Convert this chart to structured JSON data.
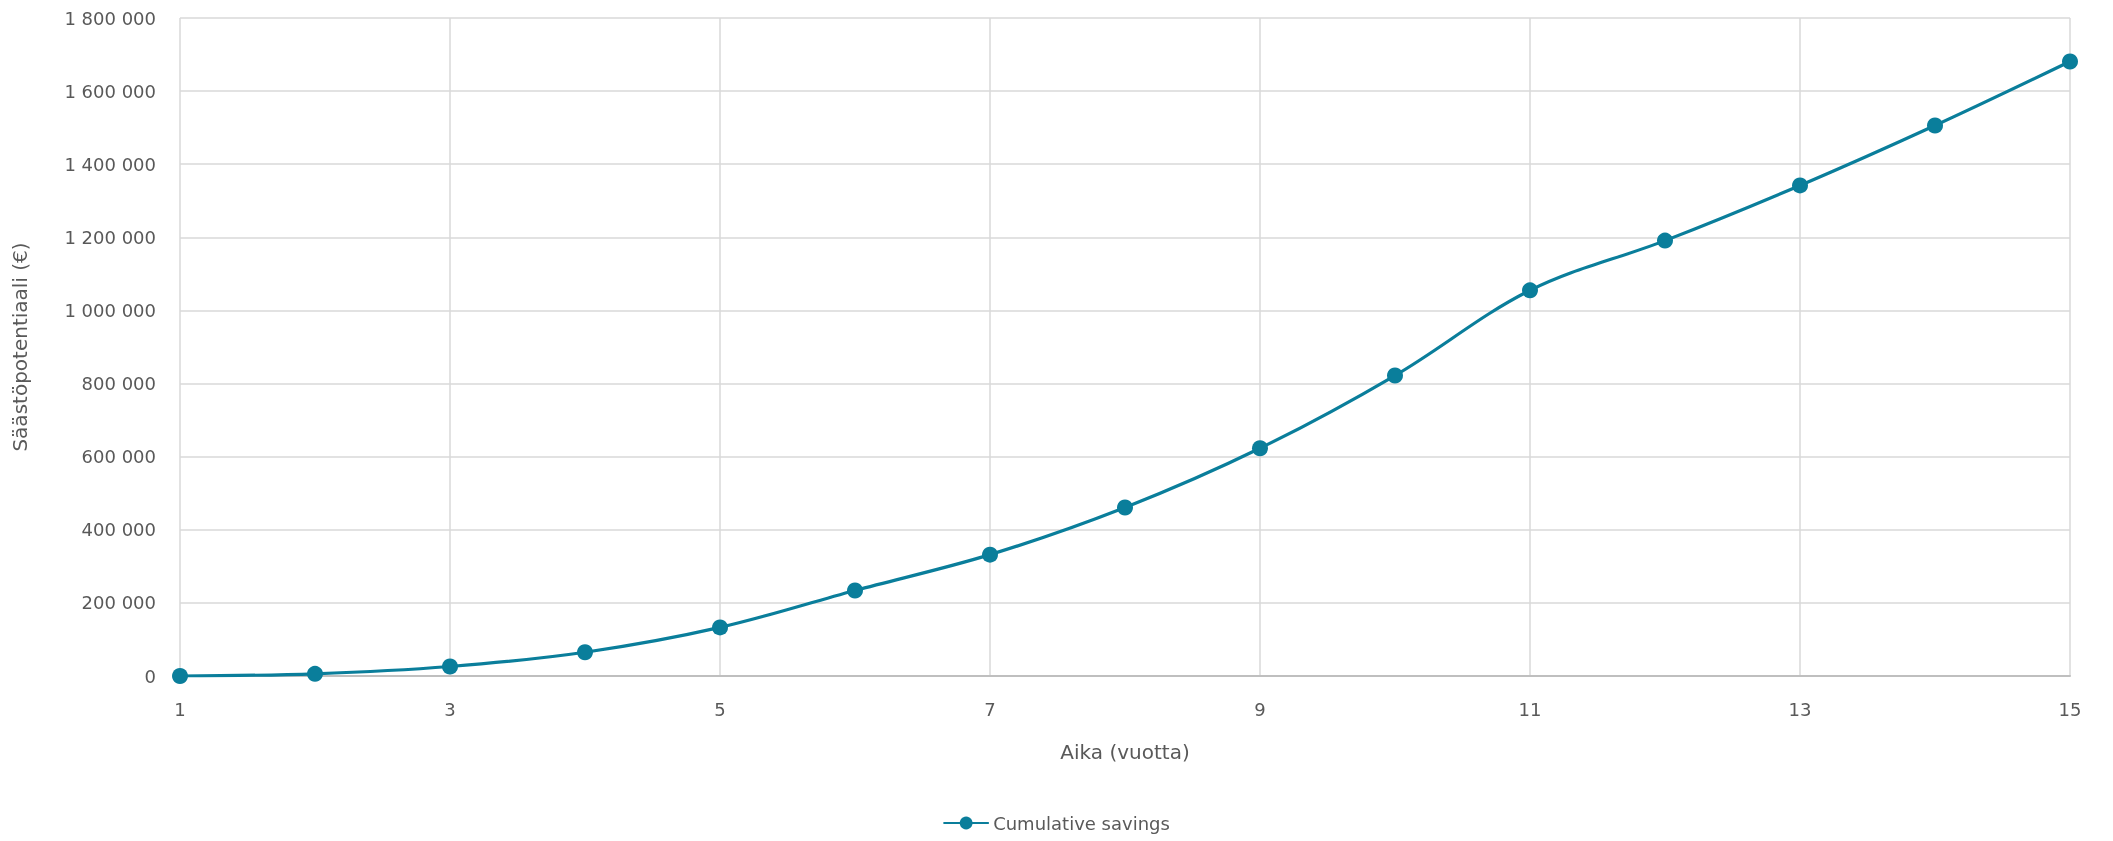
{
  "chart_data": {
    "type": "line",
    "xlabel": "Aika (vuotta)",
    "ylabel": "Säästöpotentiaali (€)",
    "x": [
      1,
      2,
      3,
      4,
      5,
      6,
      7,
      8,
      9,
      10,
      11,
      12,
      13,
      14,
      15
    ],
    "series": [
      {
        "name": "Cumulative savings",
        "color": "#0a7e9b",
        "values": [
          0,
          6000,
          26000,
          65000,
          133000,
          234000,
          332000,
          461000,
          623000,
          822000,
          1055000,
          1191000,
          1342000,
          1506000,
          1681000
        ]
      }
    ],
    "xlim": [
      1,
      15
    ],
    "xticks": [
      1,
      3,
      5,
      7,
      9,
      11,
      13,
      15
    ],
    "ylim": [
      0,
      1800000
    ],
    "yticks": [
      0,
      {
        "value": 200000,
        "label": "200 000"
      },
      {
        "value": 400000,
        "label": "400 000"
      },
      {
        "value": 600000,
        "label": "600 000"
      },
      {
        "value": 800000,
        "label": "800 000"
      },
      {
        "value": 1000000,
        "label": "1 000 000"
      },
      {
        "value": 1200000,
        "label": "1 200 000"
      },
      {
        "value": 1400000,
        "label": "1 400 000"
      },
      {
        "value": 1600000,
        "label": "1 600 000"
      },
      {
        "value": 1800000,
        "label": "1 800 000"
      }
    ],
    "grid": true,
    "legend": "bottom",
    "marker": "circle"
  }
}
